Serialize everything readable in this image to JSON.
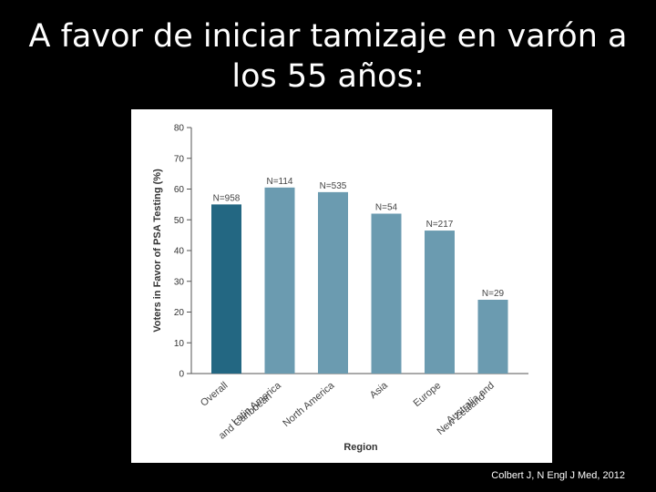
{
  "slide": {
    "title_line1": "A favor de iniciar tamizaje en varón a",
    "title_line2": "los 55 años:",
    "citation": "Colbert J, N Engl J Med, 2012"
  },
  "colors": {
    "highlight_bar": "#236782",
    "bar": "#6b9bb0",
    "axis": "#555555"
  },
  "chart_data": {
    "type": "bar",
    "categories": [
      "Overall",
      "Latin America and Caribbean",
      "North America",
      "Asia",
      "Europe",
      "Australia and New Zealand"
    ],
    "category_lines": [
      [
        "Overall"
      ],
      [
        "Latin America",
        "and Caribbean"
      ],
      [
        "North America"
      ],
      [
        "Asia"
      ],
      [
        "Europe"
      ],
      [
        "Australia and",
        "New Zealand"
      ]
    ],
    "values": [
      55,
      60.5,
      59,
      52,
      46.5,
      24
    ],
    "data_labels": [
      "N=958",
      "N=114",
      "N=535",
      "N=54",
      "N=217",
      "N=29"
    ],
    "xlabel": "Region",
    "ylabel": "Voters in Favor of PSA Testing (%)",
    "ylim": [
      0,
      80
    ],
    "yticks": [
      0,
      10,
      20,
      30,
      40,
      50,
      60,
      70,
      80
    ],
    "grid": false
  }
}
